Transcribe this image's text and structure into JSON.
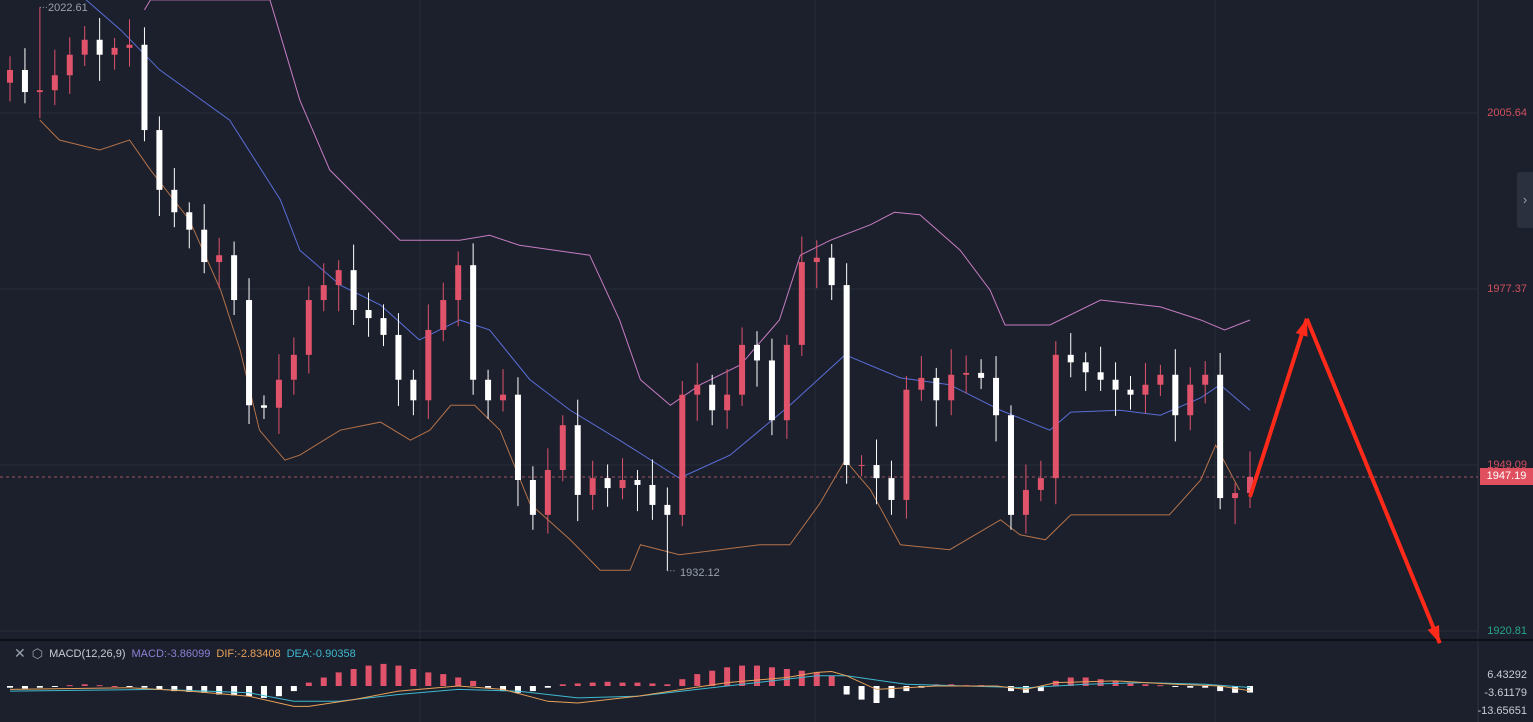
{
  "colors": {
    "up": "#e0536a",
    "down": "#ffffff",
    "upper_band": "#c77cc2",
    "middle_band": "#5a6ed8",
    "lower_band": "#b5724a",
    "dif": "#e8a15a",
    "dea": "#3fb8d0",
    "macd_label": "#8f7fd6",
    "arrow": "#ff2a1a",
    "grid": "#262c39"
  },
  "chart_data": [
    {
      "type": "candlestick",
      "ylim": [
        1917,
        2024
      ],
      "y_ticks": [
        "2005.64",
        "1977.37",
        "1949.09",
        "1920.81"
      ],
      "y_tick_values": [
        2005.64,
        1977.37,
        1949.09,
        1920.81
      ],
      "last_price": "1947.19",
      "last_price_value": 1947.19,
      "open_first": 2010.5,
      "closes": [
        2012.55,
        2009.0,
        2009.3,
        2011.7,
        2015.0,
        2017.4,
        2015.0,
        2016.1,
        2016.6,
        2002.9,
        1993.3,
        1989.7,
        1986.9,
        1981.7,
        1982.8,
        1975.6,
        1958.7,
        1958.3,
        1962.8,
        1966.8,
        1975.6,
        1978.0,
        1980.4,
        1974.0,
        1972.7,
        1970.0,
        1962.8,
        1959.5,
        1970.8,
        1975.6,
        1981.2,
        1962.8,
        1959.5,
        1960.4,
        1946.7,
        1941.1,
        1948.3,
        1955.5,
        1944.3,
        1947.0,
        1945.4,
        1946.7,
        1945.9,
        1942.7,
        1941.1,
        1960.4,
        1962.0,
        1957.9,
        1960.4,
        1968.4,
        1965.9,
        1956.3,
        1968.4,
        1981.7,
        1982.4,
        1978.0,
        1949.1,
        1949.1,
        1947.0,
        1943.5,
        1961.2,
        1963.1,
        1959.5,
        1963.6,
        1963.9,
        1963.1,
        1957.1,
        1941.1,
        1945.1,
        1947.0,
        1966.8,
        1965.6,
        1964.0,
        1962.8,
        1961.2,
        1960.4,
        1962.0,
        1963.6,
        1957.1,
        1962.0,
        1963.6,
        1943.8,
        1944.6,
        1947.19
      ],
      "high_annotation": {
        "label": "2022.61",
        "value": 2022.61,
        "bar": 2
      },
      "low_annotation": {
        "label": "1932.12",
        "value": 1932.12,
        "bar": 44
      },
      "bollinger": {
        "upper": [
          [
            9,
            2022.2
          ],
          [
            9.4,
            2023.8
          ],
          [
            17.4,
            2023.8
          ],
          [
            19.4,
            2007.7
          ],
          [
            21.4,
            1996.5
          ],
          [
            26.1,
            1985.2
          ],
          [
            30.1,
            1985.2
          ],
          [
            32.1,
            1986.0
          ],
          [
            34.1,
            1984.4
          ],
          [
            38.8,
            1982.8
          ],
          [
            40.8,
            1972.4
          ],
          [
            42.2,
            1962.8
          ],
          [
            44.2,
            1958.7
          ],
          [
            46.2,
            1962.0
          ],
          [
            48.9,
            1965.2
          ],
          [
            51.5,
            1972.4
          ],
          [
            52.9,
            1982.8
          ],
          [
            54.9,
            1985.2
          ],
          [
            57.6,
            1987.7
          ],
          [
            59.2,
            1989.7
          ],
          [
            60.9,
            1989.3
          ],
          [
            63.6,
            1983.6
          ],
          [
            65.6,
            1977.2
          ],
          [
            66.6,
            1971.6
          ],
          [
            69.6,
            1971.6
          ],
          [
            73,
            1975.6
          ],
          [
            77,
            1974.5
          ],
          [
            79.7,
            1972.4
          ],
          [
            81.3,
            1970.8
          ],
          [
            83,
            1972.4
          ]
        ],
        "middle": [
          [
            5,
            2024
          ],
          [
            7.4,
            2019.0
          ],
          [
            10,
            2012.6
          ],
          [
            14.7,
            2004.5
          ],
          [
            18.1,
            1991.7
          ],
          [
            19.4,
            1983.6
          ],
          [
            22.1,
            1978.0
          ],
          [
            24.8,
            1974.8
          ],
          [
            27.4,
            1969.2
          ],
          [
            30.1,
            1972.4
          ],
          [
            32.1,
            1970.8
          ],
          [
            34.8,
            1962.8
          ],
          [
            37.5,
            1957.9
          ],
          [
            40.8,
            1953.1
          ],
          [
            44.8,
            1947.0
          ],
          [
            48.2,
            1950.7
          ],
          [
            50.2,
            1954.7
          ],
          [
            52.2,
            1958.7
          ],
          [
            55.9,
            1966.8
          ],
          [
            59.6,
            1963.1
          ],
          [
            62.9,
            1962.0
          ],
          [
            66.3,
            1957.9
          ],
          [
            69.6,
            1954.7
          ],
          [
            71,
            1957.6
          ],
          [
            74.3,
            1957.9
          ],
          [
            77,
            1957.1
          ],
          [
            79.7,
            1959.9
          ],
          [
            81,
            1962.0
          ],
          [
            83,
            1957.9
          ]
        ],
        "lower": [
          [
            2,
            2004.5
          ],
          [
            3.3,
            2001.3
          ],
          [
            6,
            1999.7
          ],
          [
            8,
            2001.3
          ],
          [
            9.4,
            1996.5
          ],
          [
            12,
            1988.5
          ],
          [
            14.1,
            1977.2
          ],
          [
            15.4,
            1967.6
          ],
          [
            16.7,
            1954.7
          ],
          [
            18.4,
            1949.9
          ],
          [
            19.4,
            1950.7
          ],
          [
            22.1,
            1954.7
          ],
          [
            24.8,
            1956.0
          ],
          [
            26.8,
            1953.1
          ],
          [
            28.1,
            1954.7
          ],
          [
            29.5,
            1958.7
          ],
          [
            31.1,
            1958.7
          ],
          [
            32.8,
            1954.7
          ],
          [
            34.8,
            1942.9
          ],
          [
            37.5,
            1937.1
          ],
          [
            39.5,
            1932.2
          ],
          [
            41.5,
            1932.2
          ],
          [
            42.2,
            1936.3
          ],
          [
            44.8,
            1934.7
          ],
          [
            47.5,
            1935.5
          ],
          [
            50.2,
            1936.3
          ],
          [
            52.2,
            1936.3
          ],
          [
            54.2,
            1942.9
          ],
          [
            55.9,
            1949.9
          ],
          [
            57.6,
            1945.1
          ],
          [
            59.6,
            1936.3
          ],
          [
            62.9,
            1935.5
          ],
          [
            66.3,
            1940.3
          ],
          [
            67.6,
            1937.9
          ],
          [
            69.3,
            1937.1
          ],
          [
            71,
            1941.1
          ],
          [
            77.6,
            1941.1
          ],
          [
            79.7,
            1946.7
          ],
          [
            80.7,
            1952.3
          ],
          [
            82.3,
            1945.1
          ]
        ]
      },
      "projection_arrows": [
        [
          [
            83,
            1944.0
          ],
          [
            86.8,
            1972.6
          ]
        ],
        [
          [
            86.8,
            1972.6
          ],
          [
            95.7,
            1920.5
          ]
        ]
      ]
    },
    {
      "type": "bar+line",
      "title": "MACD(12,26,9)",
      "macd_label": "MACD:-3.86099",
      "dif_label": "DIF:-2.83408",
      "dea_label": "DEA:-0.90358",
      "y_ticks": [
        "6.43292",
        "-3.61179",
        "-13.65651"
      ],
      "y_tick_values": [
        6.43292,
        -3.61179,
        -13.65651
      ],
      "histogram": [
        -1,
        -1.5,
        -1,
        -0.5,
        0.5,
        1,
        0.5,
        0,
        -0.5,
        -1,
        -2,
        -3,
        -3.5,
        -4,
        -5,
        -5.5,
        -6,
        -7,
        -6,
        -3,
        2,
        5,
        8,
        10,
        12,
        13,
        12,
        10,
        8,
        7,
        5,
        3,
        -1,
        -3,
        -4,
        -3,
        -1,
        1,
        1.5,
        2,
        2.5,
        2,
        2,
        1.5,
        1,
        4,
        7,
        9,
        11,
        12,
        12,
        11,
        10,
        9,
        8,
        6,
        -5,
        -8,
        -10,
        -7,
        -3,
        -1,
        1,
        1,
        0.5,
        0.5,
        0.2,
        -3,
        -4,
        -3,
        3,
        5,
        5,
        4,
        3,
        2,
        1,
        0.5,
        -0.5,
        -1,
        -1,
        -3,
        -4,
        -3.86
      ],
      "dif": [
        [
          0,
          -2
        ],
        [
          8,
          -1
        ],
        [
          12,
          -3
        ],
        [
          16,
          -6
        ],
        [
          19,
          -12
        ],
        [
          20,
          -12
        ],
        [
          23,
          -8
        ],
        [
          26,
          -3
        ],
        [
          30,
          0
        ],
        [
          33,
          -2
        ],
        [
          36,
          -9
        ],
        [
          38,
          -10
        ],
        [
          42,
          -6
        ],
        [
          45,
          -2
        ],
        [
          48,
          2
        ],
        [
          52,
          5
        ],
        [
          54,
          8
        ],
        [
          55,
          8.5
        ],
        [
          56,
          6
        ],
        [
          58,
          -2
        ],
        [
          62,
          0
        ],
        [
          66,
          0
        ],
        [
          68,
          -2
        ],
        [
          70,
          2
        ],
        [
          74,
          3
        ],
        [
          78,
          1
        ],
        [
          81,
          0
        ],
        [
          83,
          -2.83
        ]
      ],
      "dea": [
        [
          0,
          -3
        ],
        [
          10,
          -2
        ],
        [
          16,
          -4
        ],
        [
          19,
          -9
        ],
        [
          22,
          -9
        ],
        [
          26,
          -5
        ],
        [
          30,
          -2
        ],
        [
          34,
          -3
        ],
        [
          38,
          -7
        ],
        [
          42,
          -6
        ],
        [
          46,
          -2
        ],
        [
          50,
          2
        ],
        [
          54,
          6
        ],
        [
          56,
          6
        ],
        [
          60,
          1
        ],
        [
          64,
          0
        ],
        [
          68,
          -1
        ],
        [
          72,
          1
        ],
        [
          76,
          2
        ],
        [
          80,
          1
        ],
        [
          83,
          -0.9
        ]
      ]
    }
  ],
  "toolbar": {
    "close_icon": "close-icon",
    "settings_icon": "settings-icon",
    "side_tab_icon": "chevron-right-icon"
  }
}
